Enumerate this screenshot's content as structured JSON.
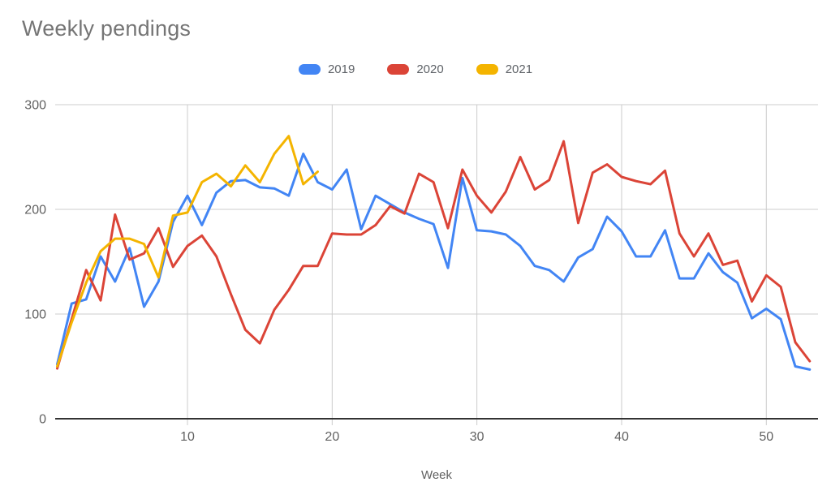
{
  "title": "Weekly pendings",
  "axes": {
    "xlabel": "Week",
    "x_tick_labels": [
      "10",
      "20",
      "30",
      "40",
      "50"
    ],
    "y_tick_labels": [
      "0",
      "100",
      "200",
      "300"
    ]
  },
  "colors": {
    "background": "#ffffff",
    "title_text": "#757575",
    "axis_label_text": "#616161",
    "legend_text": "#5f6368",
    "gridline": "#cccccc",
    "axis_line": "#333333",
    "series_2019": "#4285f4",
    "series_2020": "#db4437",
    "series_2021": "#f4b400"
  },
  "chart_data": {
    "type": "line",
    "title": "Weekly pendings",
    "xlabel": "Week",
    "ylabel": "",
    "xlim": [
      1,
      53
    ],
    "ylim": [
      0,
      300
    ],
    "x_ticks": [
      10,
      20,
      30,
      40,
      50
    ],
    "y_ticks": [
      0,
      100,
      200,
      300
    ],
    "grid": true,
    "legend_position": "top",
    "x": [
      1,
      2,
      3,
      4,
      5,
      6,
      7,
      8,
      9,
      10,
      11,
      12,
      13,
      14,
      15,
      16,
      17,
      18,
      19,
      20,
      21,
      22,
      23,
      24,
      25,
      26,
      27,
      28,
      29,
      30,
      31,
      32,
      33,
      34,
      35,
      36,
      37,
      38,
      39,
      40,
      41,
      42,
      43,
      44,
      45,
      46,
      47,
      48,
      49,
      50,
      51,
      52,
      53
    ],
    "series": [
      {
        "name": "2019",
        "color": "#4285f4",
        "values": [
          52,
          110,
          114,
          155,
          131,
          163,
          107,
          131,
          188,
          213,
          185,
          216,
          227,
          228,
          221,
          220,
          213,
          253,
          226,
          219,
          238,
          181,
          213,
          205,
          197,
          191,
          186,
          144,
          230,
          180,
          179,
          176,
          165,
          146,
          142,
          131,
          154,
          162,
          193,
          179,
          155,
          155,
          180,
          134,
          134,
          158,
          140,
          130,
          96,
          105,
          95,
          50,
          47
        ]
      },
      {
        "name": "2020",
        "color": "#db4437",
        "values": [
          48,
          95,
          142,
          113,
          195,
          152,
          158,
          182,
          145,
          165,
          175,
          155,
          119,
          85,
          72,
          104,
          123,
          146,
          146,
          177,
          176,
          176,
          185,
          203,
          196,
          234,
          226,
          182,
          238,
          213,
          197,
          217,
          250,
          219,
          228,
          265,
          187,
          235,
          243,
          231,
          227,
          224,
          237,
          177,
          155,
          177,
          147,
          151,
          112,
          137,
          126,
          73,
          55
        ]
      },
      {
        "name": "2021",
        "color": "#f4b400",
        "values": [
          50,
          92,
          130,
          160,
          172,
          172,
          167,
          135,
          194,
          197,
          226,
          234,
          222,
          242,
          226,
          253,
          270,
          224,
          236
        ]
      }
    ]
  }
}
